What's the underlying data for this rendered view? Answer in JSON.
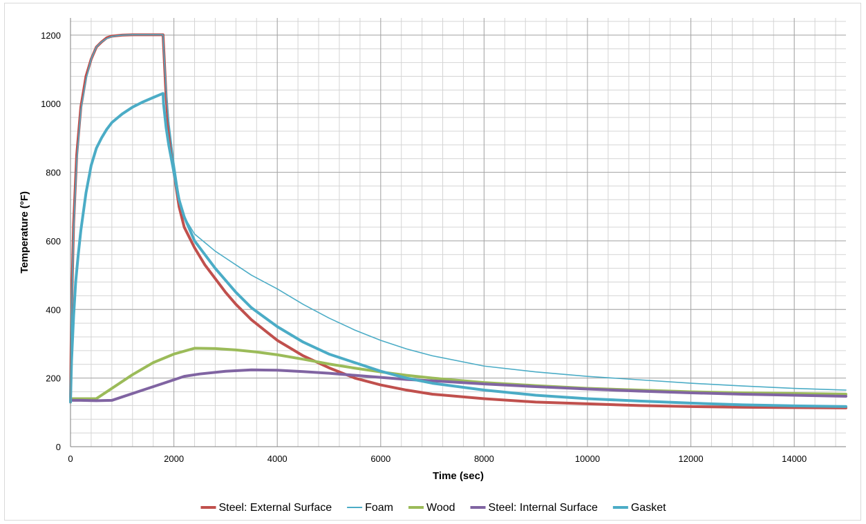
{
  "chart_data": {
    "type": "line",
    "title": "",
    "xlabel": "Time (sec)",
    "ylabel": "Temperature (°F)",
    "xlim": [
      0,
      15000
    ],
    "ylim": [
      0,
      1250
    ],
    "x_major_ticks": [
      0,
      2000,
      4000,
      6000,
      8000,
      10000,
      12000,
      14000
    ],
    "x_tick_labels": [
      "0",
      "2000",
      "4000",
      "6000",
      "8000",
      "10000",
      "12000",
      "14000"
    ],
    "y_major_ticks": [
      0,
      200,
      400,
      600,
      800,
      1000,
      1200
    ],
    "y_tick_labels": [
      "0",
      "200",
      "400",
      "600",
      "800",
      "1000",
      "1200"
    ],
    "x_minor_step": 400,
    "y_minor_step": 40,
    "grid": true,
    "legend_position": "bottom",
    "series": [
      {
        "name": "Steel: External Surface",
        "color": "#c0504d",
        "width": "thick",
        "x": [
          0,
          20,
          60,
          120,
          200,
          300,
          400,
          500,
          600,
          700,
          800,
          1000,
          1200,
          1500,
          1790,
          1800,
          1850,
          1900,
          2000,
          2100,
          2200,
          2400,
          2600,
          2800,
          3000,
          3200,
          3500,
          4000,
          4500,
          5000,
          5500,
          6000,
          6500,
          7000,
          8000,
          9000,
          10000,
          11000,
          12000,
          13000,
          14000,
          15000
        ],
        "y": [
          140,
          400,
          650,
          850,
          990,
          1080,
          1130,
          1165,
          1180,
          1192,
          1197,
          1200,
          1201,
          1201,
          1201,
          1170,
          1020,
          920,
          800,
          700,
          640,
          580,
          530,
          490,
          450,
          415,
          370,
          310,
          265,
          230,
          200,
          180,
          165,
          153,
          140,
          130,
          125,
          120,
          117,
          115,
          114,
          113
        ]
      },
      {
        "name": "Foam",
        "color": "#4bacc6",
        "width": "thin",
        "x": [
          0,
          20,
          60,
          120,
          200,
          300,
          400,
          500,
          600,
          700,
          800,
          1000,
          1200,
          1500,
          1790,
          1800,
          1850,
          1900,
          2000,
          2100,
          2200,
          2400,
          2600,
          2800,
          3000,
          3200,
          3500,
          4000,
          4500,
          5000,
          5500,
          6000,
          6500,
          7000,
          8000,
          9000,
          10000,
          11000,
          12000,
          13000,
          14000,
          15000
        ],
        "y": [
          130,
          380,
          630,
          830,
          980,
          1070,
          1130,
          1165,
          1180,
          1190,
          1196,
          1200,
          1201,
          1201,
          1201,
          1170,
          1040,
          950,
          830,
          730,
          670,
          620,
          595,
          570,
          550,
          530,
          500,
          460,
          415,
          375,
          340,
          310,
          285,
          265,
          235,
          218,
          205,
          195,
          185,
          177,
          170,
          165
        ]
      },
      {
        "name": "Wood",
        "color": "#9bbb59",
        "width": "thick",
        "x": [
          0,
          100,
          300,
          500,
          800,
          1200,
          1600,
          2000,
          2400,
          2800,
          3200,
          3600,
          4000,
          4500,
          5000,
          5500,
          6000,
          6500,
          7000,
          8000,
          9000,
          10000,
          11000,
          12000,
          13000,
          14000,
          15000
        ],
        "y": [
          140,
          140,
          140,
          140,
          170,
          210,
          245,
          270,
          287,
          286,
          282,
          276,
          268,
          255,
          241,
          229,
          218,
          208,
          200,
          187,
          178,
          170,
          165,
          160,
          157,
          155,
          153
        ]
      },
      {
        "name": "Steel: Internal Surface",
        "color": "#8064a2",
        "width": "thick",
        "x": [
          0,
          200,
          500,
          800,
          1000,
          1400,
          1800,
          2200,
          2500,
          3000,
          3500,
          4000,
          4500,
          5000,
          5500,
          6000,
          6500,
          7000,
          8000,
          9000,
          10000,
          11000,
          12000,
          13000,
          14000,
          15000
        ],
        "y": [
          135,
          135,
          134,
          135,
          145,
          165,
          185,
          205,
          212,
          220,
          224,
          223,
          219,
          214,
          208,
          202,
          196,
          192,
          183,
          175,
          168,
          162,
          157,
          153,
          150,
          147
        ]
      },
      {
        "name": "Gasket",
        "color": "#4bacc6",
        "width": "thick",
        "x": [
          0,
          20,
          60,
          100,
          150,
          200,
          300,
          400,
          500,
          600,
          700,
          800,
          1000,
          1200,
          1400,
          1600,
          1790,
          1800,
          1850,
          1900,
          2000,
          2100,
          2200,
          2400,
          2600,
          2800,
          3000,
          3200,
          3500,
          4000,
          4500,
          5000,
          5500,
          6000,
          6500,
          7000,
          8000,
          9000,
          10000,
          11000,
          12000,
          13000,
          14000,
          15000
        ],
        "y": [
          130,
          250,
          380,
          480,
          560,
          630,
          740,
          820,
          870,
          900,
          925,
          945,
          970,
          990,
          1005,
          1018,
          1030,
          1000,
          930,
          880,
          800,
          720,
          670,
          600,
          560,
          520,
          485,
          450,
          405,
          350,
          305,
          270,
          245,
          220,
          200,
          185,
          165,
          150,
          140,
          133,
          127,
          122,
          119,
          117
        ]
      }
    ],
    "legend": [
      {
        "label": "Steel: External Surface",
        "color": "#c0504d"
      },
      {
        "label": "Foam",
        "color": "#4bacc6"
      },
      {
        "label": "Wood",
        "color": "#9bbb59"
      },
      {
        "label": "Steel: Internal Surface",
        "color": "#8064a2"
      },
      {
        "label": "Gasket",
        "color": "#4bacc6"
      }
    ]
  }
}
